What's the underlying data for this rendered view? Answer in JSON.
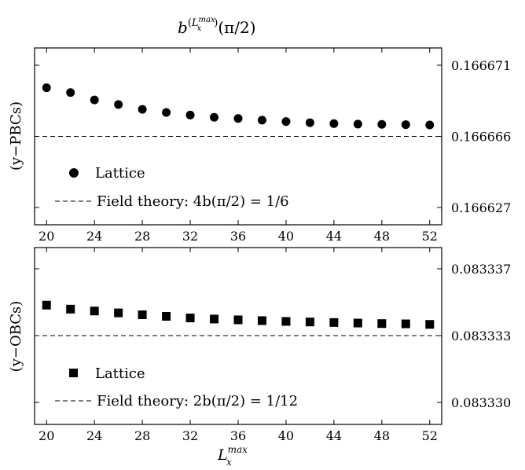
{
  "figure": {
    "title_base": "b",
    "title_sup_open": "(",
    "title_sup_var": "L",
    "title_sup_sup": "max",
    "title_sup_sub": "x",
    "title_sup_close": ")",
    "title_arg": "(π/2)",
    "xlabel_var": "L",
    "xlabel_sup": "max",
    "xlabel_sub": "x"
  },
  "chart_data": [
    {
      "type": "scatter",
      "panel": "top",
      "ylabel": "(y−PBCs)",
      "x_ticks": [
        20,
        24,
        28,
        32,
        36,
        40,
        44,
        48,
        52
      ],
      "x_tick_labels": [
        "20",
        "24",
        "28",
        "32",
        "36",
        "40",
        "44",
        "48",
        "52"
      ],
      "xlim": [
        19,
        53
      ],
      "y_ticks": [
        0.166627,
        0.166666,
        0.166671
      ],
      "y_tick_labels": [
        "0.166627",
        "0.166666",
        "0.166671"
      ],
      "y_tick_levels": [
        0.0,
        0.5,
        1.0
      ],
      "marker": "circle",
      "series": [
        {
          "name": "Lattice",
          "x": [
            20,
            22,
            24,
            26,
            28,
            30,
            32,
            34,
            36,
            38,
            40,
            42,
            44,
            46,
            48,
            50,
            52
          ],
          "level": [
            0.842,
            0.808,
            0.756,
            0.724,
            0.69,
            0.668,
            0.65,
            0.634,
            0.626,
            0.614,
            0.604,
            0.596,
            0.59,
            0.586,
            0.584,
            0.582,
            0.58
          ]
        }
      ],
      "reference": {
        "name": "Field theory: 4b(π/2) = 1/6",
        "value": 0.166666,
        "level": 0.5
      },
      "legend": [
        "Lattice",
        "Field theory: 4b(π/2) = 1/6"
      ],
      "legend_position": "bottom-left",
      "grid": false
    },
    {
      "type": "scatter",
      "panel": "bottom",
      "ylabel": "(y−OBCs)",
      "x_ticks": [
        20,
        24,
        28,
        32,
        36,
        40,
        44,
        48,
        52
      ],
      "x_tick_labels": [
        "20",
        "24",
        "28",
        "32",
        "36",
        "40",
        "44",
        "48",
        "52"
      ],
      "xlim": [
        19,
        53
      ],
      "y_ticks": [
        0.08333,
        0.083333,
        0.083337
      ],
      "y_tick_labels": [
        "0.083330",
        "0.083333",
        "0.083337"
      ],
      "y_tick_levels": [
        0.0,
        0.5,
        1.0
      ],
      "marker": "square",
      "series": [
        {
          "name": "Lattice",
          "x": [
            20,
            22,
            24,
            26,
            28,
            30,
            32,
            34,
            36,
            38,
            40,
            42,
            44,
            46,
            48,
            50,
            52
          ],
          "level": [
            0.728,
            0.698,
            0.684,
            0.67,
            0.656,
            0.644,
            0.632,
            0.624,
            0.618,
            0.612,
            0.606,
            0.602,
            0.598,
            0.594,
            0.59,
            0.588,
            0.584
          ]
        }
      ],
      "reference": {
        "name": "Field theory: 2b(π/2) = 1/12",
        "value": 0.083333,
        "level": 0.5
      },
      "legend": [
        "Lattice",
        "Field theory: 2b(π/2) = 1/12"
      ],
      "legend_position": "bottom-left",
      "grid": false
    }
  ]
}
